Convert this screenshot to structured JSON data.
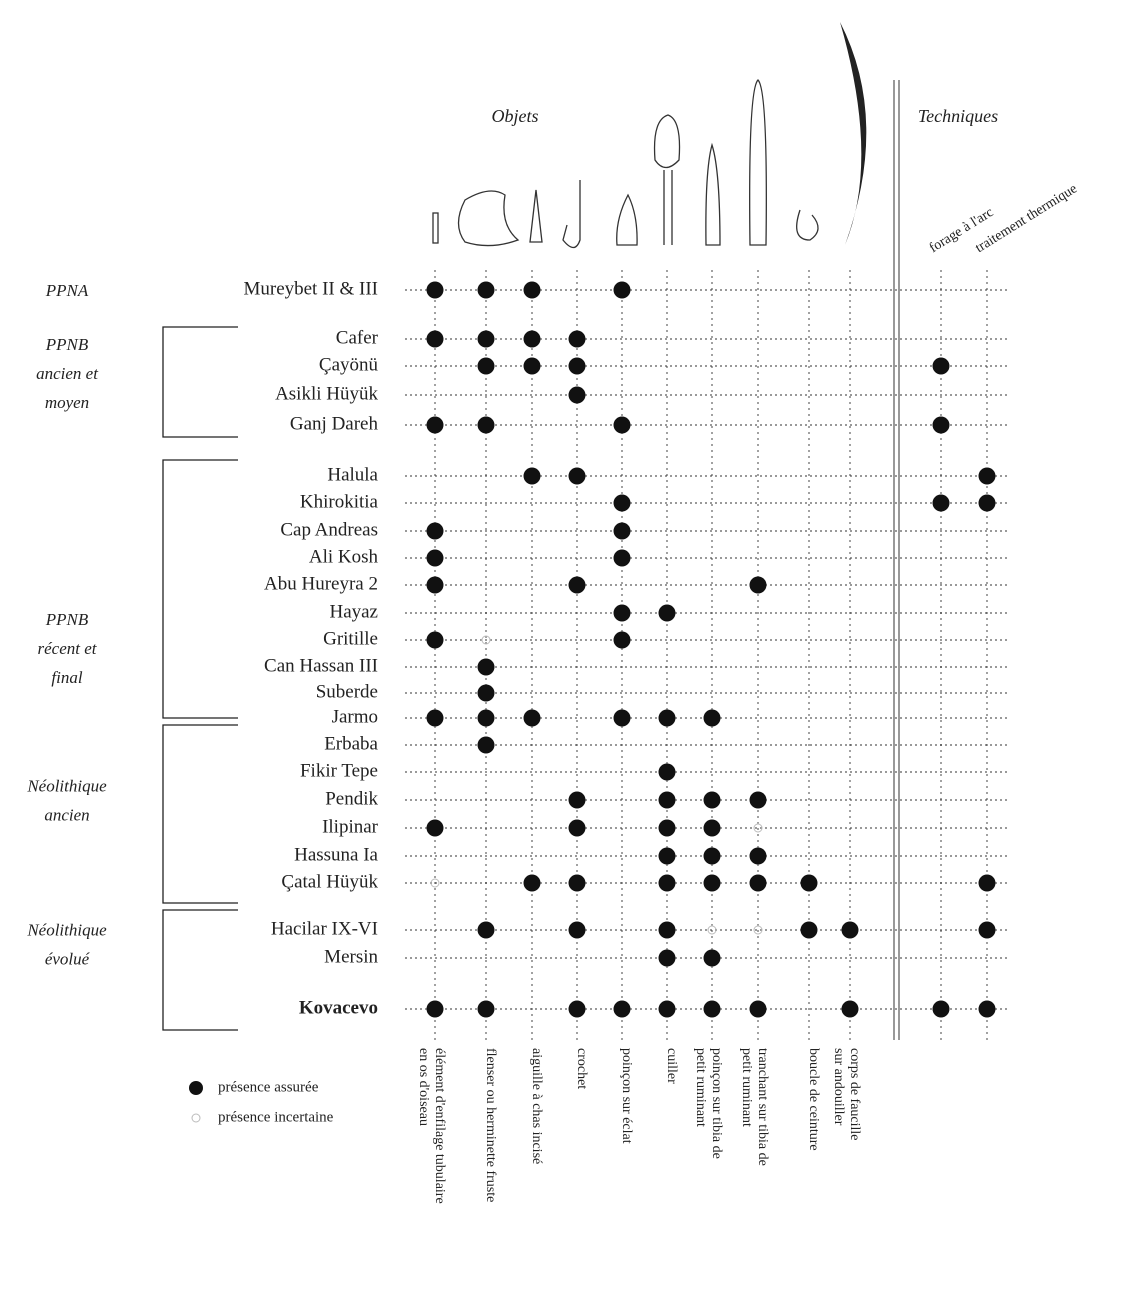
{
  "header": {
    "objects": "Objets",
    "techniques": "Techniques"
  },
  "columns": [
    [
      "élément d'enfilage tubulaire",
      "en os d'oiseau"
    ],
    [
      "flenser ou herminette fruste"
    ],
    [
      "aiguille à chas incisé"
    ],
    [
      "crochet"
    ],
    [
      "poinçon sur éclat"
    ],
    [
      "cuiller"
    ],
    [
      "poinçon sur tibia de",
      "petit ruminant"
    ],
    [
      "tranchant sur tibia de",
      "petit ruminant"
    ],
    [
      "boucle de ceinture"
    ],
    [
      "corps de faucille",
      "sur andouiller"
    ],
    [
      "forage à l'arc"
    ],
    [
      "traitement thermique"
    ]
  ],
  "periods": [
    {
      "label": [
        "PPNA"
      ]
    },
    {
      "label": [
        "PPNB",
        "ancien et",
        "moyen"
      ]
    },
    {
      "label": [
        "PPNB",
        "récent et",
        "final"
      ]
    },
    {
      "label": [
        "Néolithique",
        "ancien"
      ]
    },
    {
      "label": [
        "Néolithique",
        "évolué"
      ]
    }
  ],
  "sites": [
    {
      "name": "Mureybet II & III",
      "present": [
        0,
        1,
        2,
        4
      ],
      "uncertain": []
    },
    {
      "name": "Cafer",
      "present": [
        0,
        1,
        2,
        3
      ],
      "uncertain": []
    },
    {
      "name": "Çayönü",
      "present": [
        1,
        2,
        3,
        10
      ],
      "uncertain": []
    },
    {
      "name": "Asikli Hüyük",
      "present": [
        3
      ],
      "uncertain": []
    },
    {
      "name": "Ganj Dareh",
      "present": [
        0,
        1,
        4,
        10
      ],
      "uncertain": []
    },
    {
      "name": "Halula",
      "present": [
        2,
        3,
        11
      ],
      "uncertain": []
    },
    {
      "name": "Khirokitia",
      "present": [
        4,
        10,
        11
      ],
      "uncertain": []
    },
    {
      "name": "Cap Andreas",
      "present": [
        0,
        4
      ],
      "uncertain": []
    },
    {
      "name": "Ali Kosh",
      "present": [
        0,
        4
      ],
      "uncertain": []
    },
    {
      "name": "Abu Hureyra 2",
      "present": [
        0,
        3,
        7
      ],
      "uncertain": []
    },
    {
      "name": "Hayaz",
      "present": [
        4,
        5
      ],
      "uncertain": []
    },
    {
      "name": "Gritille",
      "present": [
        0,
        4
      ],
      "uncertain": [
        1
      ]
    },
    {
      "name": "Can Hassan III",
      "present": [
        1
      ],
      "uncertain": []
    },
    {
      "name": "Suberde",
      "present": [
        1
      ],
      "uncertain": []
    },
    {
      "name": "Jarmo",
      "present": [
        0,
        1,
        2,
        4,
        5,
        6
      ],
      "uncertain": []
    },
    {
      "name": "Erbaba",
      "present": [
        1
      ],
      "uncertain": []
    },
    {
      "name": "Fikir Tepe",
      "present": [
        5
      ],
      "uncertain": []
    },
    {
      "name": "Pendik",
      "present": [
        3,
        5,
        6,
        7
      ],
      "uncertain": []
    },
    {
      "name": "Ilipinar",
      "present": [
        0,
        3,
        5,
        6
      ],
      "uncertain": [
        7
      ]
    },
    {
      "name": "Hassuna Ia",
      "present": [
        5,
        6,
        7
      ],
      "uncertain": []
    },
    {
      "name": "Çatal Hüyük",
      "present": [
        2,
        3,
        5,
        6,
        7,
        8,
        11
      ],
      "uncertain": [
        0
      ]
    },
    {
      "name": "Hacilar IX-VI",
      "present": [
        1,
        3,
        5,
        8,
        9,
        11
      ],
      "uncertain": [
        6,
        7
      ]
    },
    {
      "name": "Mersin",
      "present": [
        5,
        6
      ],
      "uncertain": []
    },
    {
      "name": "Kovacevo",
      "present": [
        0,
        1,
        3,
        4,
        5,
        6,
        7,
        9,
        10,
        11
      ],
      "uncertain": []
    }
  ],
  "legend": {
    "certain": "présence assurée",
    "uncertain": "présence incertaine"
  }
}
